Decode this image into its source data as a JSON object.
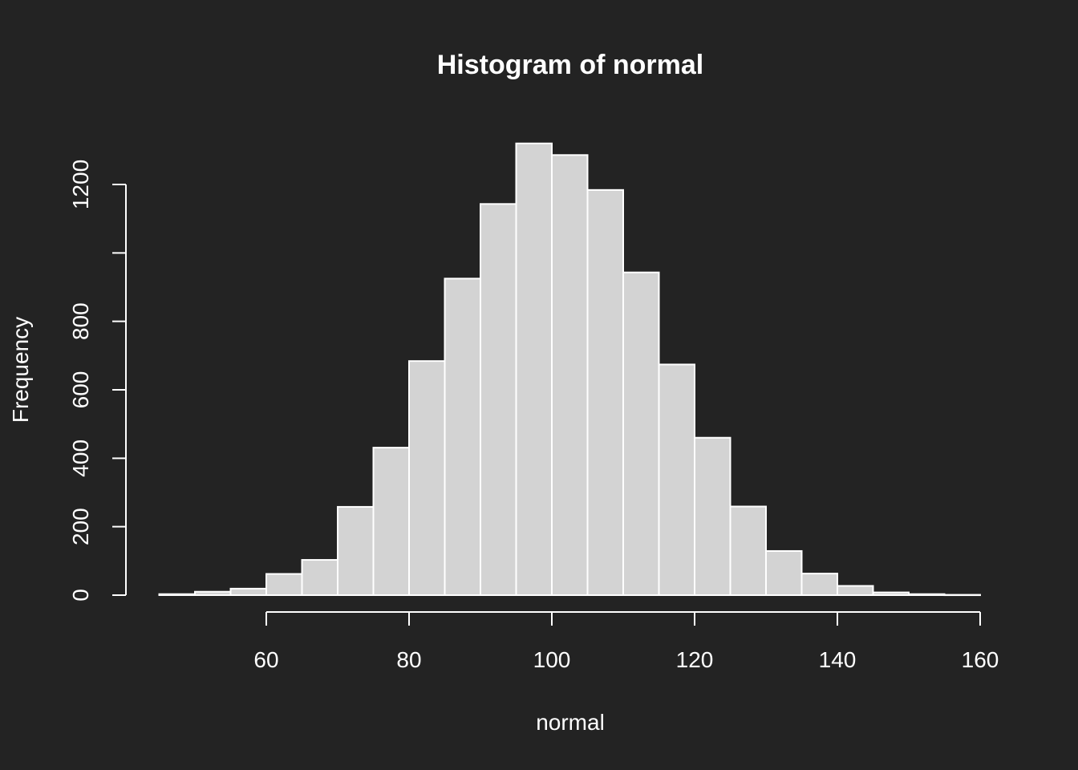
{
  "chart_data": {
    "type": "bar",
    "title": "Histogram of normal",
    "xlabel": "normal",
    "ylabel": "Frequency",
    "bin_width": 5,
    "bins": [
      {
        "start": 45,
        "end": 50,
        "count": 3
      },
      {
        "start": 50,
        "end": 55,
        "count": 10
      },
      {
        "start": 55,
        "end": 60,
        "count": 19
      },
      {
        "start": 60,
        "end": 65,
        "count": 62
      },
      {
        "start": 65,
        "end": 70,
        "count": 103
      },
      {
        "start": 70,
        "end": 75,
        "count": 258
      },
      {
        "start": 75,
        "end": 80,
        "count": 431
      },
      {
        "start": 80,
        "end": 85,
        "count": 684
      },
      {
        "start": 85,
        "end": 90,
        "count": 925
      },
      {
        "start": 90,
        "end": 95,
        "count": 1143
      },
      {
        "start": 95,
        "end": 100,
        "count": 1320
      },
      {
        "start": 100,
        "end": 105,
        "count": 1286
      },
      {
        "start": 105,
        "end": 110,
        "count": 1184
      },
      {
        "start": 110,
        "end": 115,
        "count": 943
      },
      {
        "start": 115,
        "end": 120,
        "count": 674
      },
      {
        "start": 120,
        "end": 125,
        "count": 460
      },
      {
        "start": 125,
        "end": 130,
        "count": 259
      },
      {
        "start": 130,
        "end": 135,
        "count": 129
      },
      {
        "start": 135,
        "end": 140,
        "count": 63
      },
      {
        "start": 140,
        "end": 145,
        "count": 27
      },
      {
        "start": 145,
        "end": 150,
        "count": 8
      },
      {
        "start": 150,
        "end": 155,
        "count": 3
      },
      {
        "start": 155,
        "end": 160,
        "count": 1
      }
    ],
    "xlim": [
      45,
      160
    ],
    "ylim": [
      0,
      1320
    ],
    "x_ticks": [
      60,
      80,
      100,
      120,
      140,
      160
    ],
    "x_tick_labels": [
      "60",
      "80",
      "100",
      "120",
      "140",
      "160"
    ],
    "y_ticks": [
      0,
      200,
      400,
      600,
      800,
      1000,
      1200
    ],
    "y_tick_labels": [
      "0",
      "200",
      "400",
      "600",
      "800",
      "",
      "1200"
    ],
    "grid": false,
    "bar_fill": "#d3d3d3",
    "bar_border": "#ffffff",
    "background": "#232323",
    "foreground": "#ffffff"
  }
}
